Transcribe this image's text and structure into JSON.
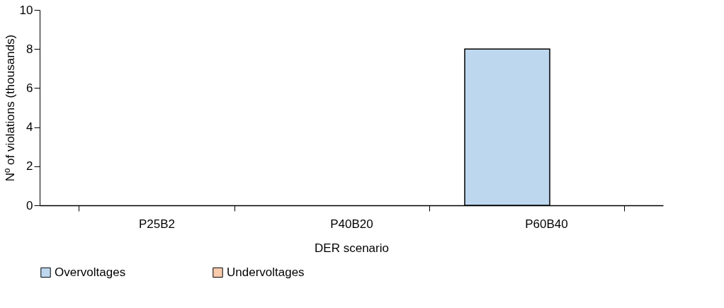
{
  "chart_data": {
    "type": "bar",
    "xlabel": "DER scenario",
    "ylabel": "Nº of violations (thousands)",
    "categories": [
      "P25B2",
      "P40B20",
      "P60B40"
    ],
    "series": [
      {
        "name": "Overvoltages",
        "color": "#bdd7ee",
        "values": [
          0,
          0,
          8.0
        ]
      },
      {
        "name": "Undervoltages",
        "color": "#f8cbad",
        "values": [
          0,
          0,
          0
        ]
      }
    ],
    "ylim": [
      0,
      10
    ],
    "yticks": [
      0,
      2,
      4,
      6,
      8,
      10
    ],
    "grid": false,
    "legend": "bottom"
  }
}
